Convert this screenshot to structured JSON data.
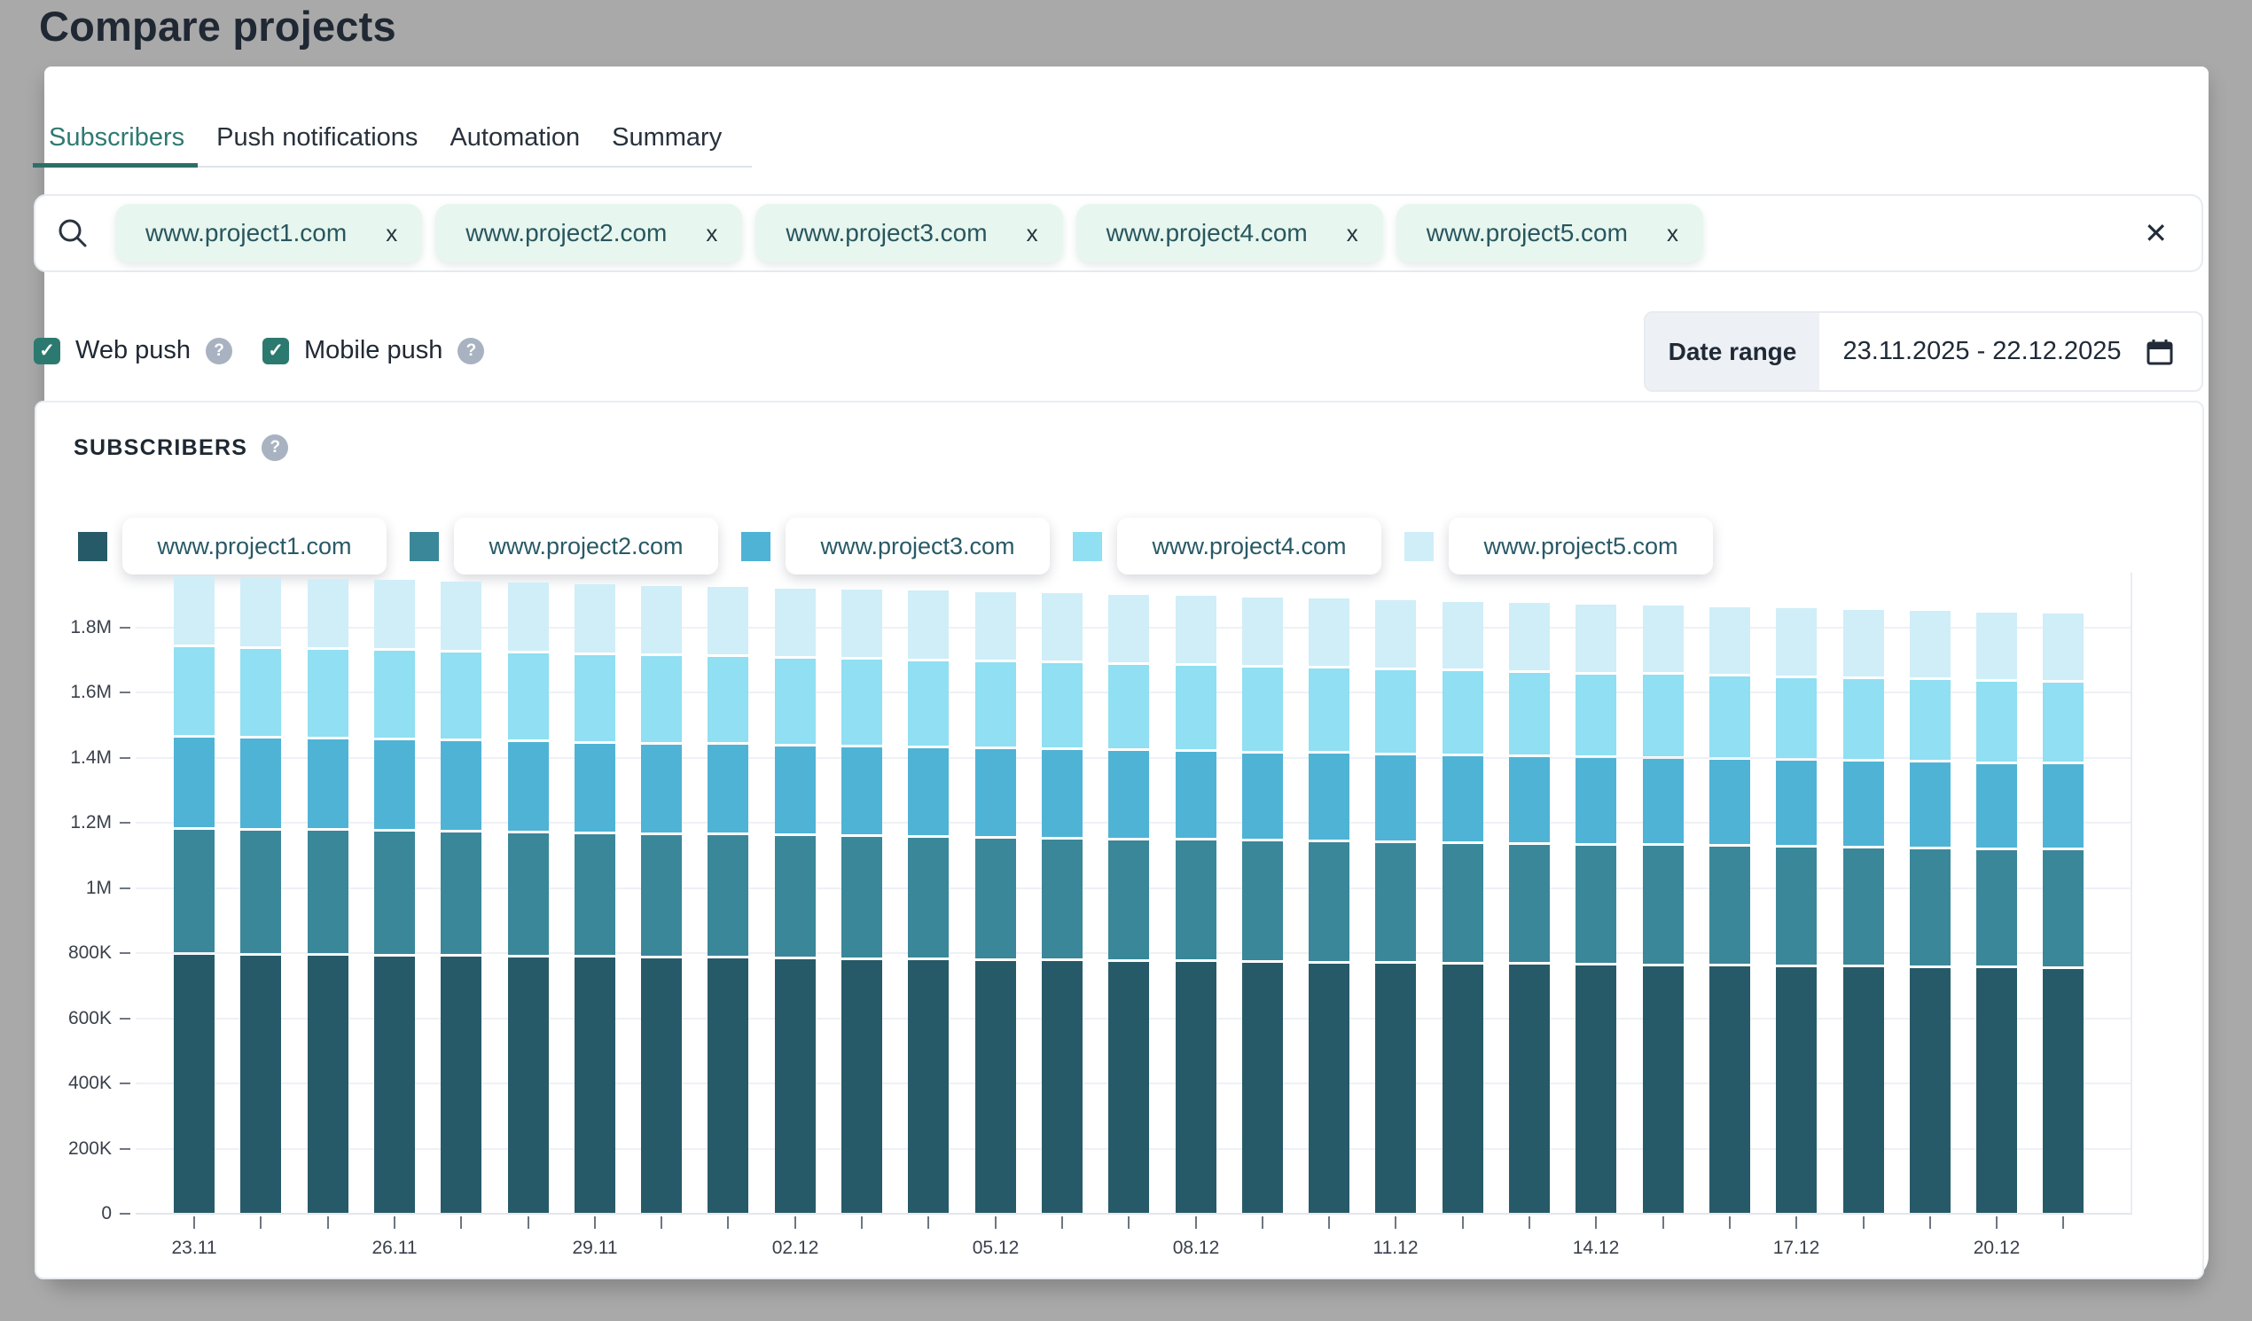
{
  "page": {
    "title": "Compare projects"
  },
  "tabs": [
    {
      "label": "Subscribers",
      "active": true
    },
    {
      "label": "Push notifications",
      "active": false
    },
    {
      "label": "Automation",
      "active": false
    },
    {
      "label": "Summary",
      "active": false
    }
  ],
  "icons": {
    "help": "?",
    "check": "✓",
    "clear": "✕",
    "remove": "x"
  },
  "search": {
    "tags": [
      "www.project1.com",
      "www.project2.com",
      "www.project3.com",
      "www.project4.com",
      "www.project5.com"
    ]
  },
  "filters": {
    "web_push": {
      "label": "Web push",
      "checked": true
    },
    "mobile_push": {
      "label": "Mobile push",
      "checked": true
    }
  },
  "date_range": {
    "label": "Date range",
    "value": "23.11.2025 - 22.12.2025"
  },
  "panel": {
    "heading": "SUBSCRIBERS"
  },
  "colors": {
    "accent_teal": "#2c7a6f",
    "tab_active": "#2e7a72",
    "tag_bg": "#e7f6ee",
    "help_bg": "#a8b2c1",
    "grid": "#eef1f6"
  },
  "chart_data": {
    "type": "bar",
    "stacked": true,
    "title": "SUBSCRIBERS",
    "grid": "horizontal",
    "legend_position": "top",
    "ylim": [
      0,
      2000000
    ],
    "y_ticks": [
      "0",
      "200K",
      "400K",
      "600K",
      "800K",
      "1M",
      "1.2M",
      "1.4M",
      "1.6M",
      "1.8M"
    ],
    "y_tick_values": [
      0,
      200000,
      400000,
      600000,
      800000,
      1000000,
      1200000,
      1400000,
      1600000,
      1800000
    ],
    "x_label_every": 3,
    "x_tick_labels": [
      "23.11",
      "26.11",
      "29.11",
      "02.12",
      "05.12",
      "08.12",
      "11.12",
      "14.12",
      "17.12",
      "20.12"
    ],
    "categories": [
      "23.11",
      "24.11",
      "25.11",
      "26.11",
      "27.11",
      "28.11",
      "29.11",
      "30.11",
      "01.12",
      "02.12",
      "03.12",
      "04.12",
      "05.12",
      "06.12",
      "07.12",
      "08.12",
      "09.12",
      "10.12",
      "11.12",
      "12.12",
      "13.12",
      "14.12",
      "15.12",
      "16.12",
      "17.12",
      "18.12",
      "19.12",
      "20.12",
      "21.12"
    ],
    "series": [
      {
        "name": "www.project1.com",
        "color": "#275a68",
        "values": [
          800000,
          798000,
          797000,
          795000,
          794000,
          792000,
          791000,
          789000,
          788000,
          786000,
          784000,
          783000,
          781000,
          780000,
          778000,
          777000,
          775000,
          774000,
          772000,
          770000,
          769000,
          767000,
          766000,
          764000,
          763000,
          761000,
          760000,
          758000,
          757000
        ]
      },
      {
        "name": "www.project2.com",
        "color": "#3a8799",
        "values": [
          385000,
          384000,
          383000,
          383000,
          382000,
          381000,
          380000,
          379000,
          379000,
          378000,
          377000,
          376000,
          376000,
          375000,
          374000,
          373000,
          372000,
          372000,
          371000,
          370000,
          369000,
          368000,
          368000,
          367000,
          366000,
          365000,
          365000,
          364000,
          363000
        ]
      },
      {
        "name": "www.project3.com",
        "color": "#4fb3d6",
        "values": [
          282000,
          281000,
          281000,
          280000,
          279000,
          279000,
          278000,
          277000,
          277000,
          276000,
          275000,
          275000,
          274000,
          273000,
          273000,
          272000,
          272000,
          271000,
          270000,
          270000,
          269000,
          268000,
          268000,
          267000,
          266000,
          266000,
          265000,
          264000,
          264000
        ]
      },
      {
        "name": "www.project4.com",
        "color": "#90dff2",
        "values": [
          278000,
          277000,
          276000,
          275000,
          274000,
          273000,
          272000,
          271000,
          270000,
          269000,
          269000,
          268000,
          267000,
          266000,
          265000,
          264000,
          263000,
          262000,
          261000,
          260000,
          259000,
          258000,
          257000,
          256000,
          255000,
          254000,
          253000,
          253000,
          251000
        ]
      },
      {
        "name": "www.project5.com",
        "color": "#cfeef8",
        "values": [
          218000,
          218000,
          218000,
          217000,
          217000,
          217000,
          217000,
          216000,
          216000,
          216000,
          216000,
          216000,
          215000,
          215000,
          215000,
          215000,
          215000,
          214000,
          214000,
          214000,
          214000,
          213000,
          213000,
          213000,
          213000,
          213000,
          212000,
          212000,
          212000
        ]
      }
    ]
  }
}
